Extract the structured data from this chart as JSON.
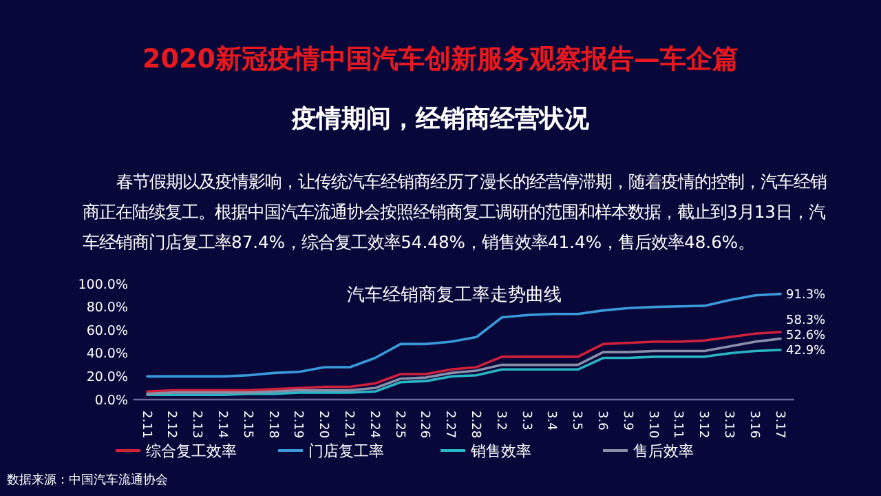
{
  "chart_data": {
    "type": "line",
    "title": "2020新冠疫情中国汽车创新服务观察报告—车企篇",
    "subtitle": "疫情期间，经销商经营状况",
    "annotations": [
      "春节假期以及疫情影响，让传统汽车经销商经历了漫长的经营停滞期，随着疫情的控制，汽车经销商正在陆续复工。根据中国汽车流通协会按照经销商复工调研的范围和样本数据，截止到3月13日，汽车经销商门店复工率87.4%，综合复工效率54.48%，销售效率41.4%，售后效率48.6%。",
      "汽车经销商复工率走势曲线",
      "数据来源：中国汽车流通协会"
    ],
    "categories": [
      "2.11",
      "2.12",
      "2.13",
      "2.14",
      "2.15",
      "2.18",
      "2.19",
      "2.20",
      "2.21",
      "2.24",
      "2.25",
      "2.26",
      "2.27",
      "2.28",
      "3.2",
      "3.3",
      "3.4",
      "3.5",
      "3.6",
      "3.9",
      "3.10",
      "3.11",
      "3.12",
      "3.13",
      "3.16",
      "3.17"
    ],
    "ylim": [
      0,
      100
    ],
    "yticks": [
      {
        "value": 0,
        "label": "0.0%"
      },
      {
        "value": 20,
        "label": "20.0%"
      },
      {
        "value": 40,
        "label": "40.0%"
      },
      {
        "value": 60,
        "label": "60.0%"
      },
      {
        "value": 80,
        "label": "80.0%"
      },
      {
        "value": 100,
        "label": "100.0%"
      }
    ],
    "grid": false,
    "legend": "bottom",
    "marker": "none",
    "line_style": "solid",
    "series": [
      {
        "name": "综合复工效率",
        "color": "#d0203a",
        "values": [
          7,
          8,
          8,
          8,
          8,
          9,
          10,
          11,
          11,
          14,
          22,
          22,
          26,
          28,
          37,
          37,
          37,
          37,
          48,
          49,
          50,
          50,
          51,
          54,
          57,
          58.3
        ],
        "value_labels": [
          null,
          null,
          null,
          null,
          null,
          null,
          null,
          null,
          null,
          null,
          null,
          null,
          null,
          null,
          null,
          null,
          null,
          null,
          null,
          null,
          null,
          null,
          null,
          null,
          null,
          "58.3%"
        ]
      },
      {
        "name": "门店复工率",
        "color": "#3a9ad9",
        "values": [
          20,
          20,
          20,
          20,
          21,
          23,
          24,
          28,
          28,
          36,
          48,
          48,
          50,
          54,
          71,
          73,
          74,
          74,
          77,
          79,
          80,
          80.5,
          81,
          86,
          90,
          91.3
        ],
        "value_labels": [
          null,
          null,
          null,
          null,
          null,
          null,
          null,
          null,
          null,
          null,
          null,
          null,
          null,
          null,
          null,
          null,
          null,
          null,
          null,
          null,
          null,
          null,
          null,
          null,
          null,
          "91.3%"
        ]
      },
      {
        "name": "销售效率",
        "color": "#2ab5c5",
        "values": [
          4,
          4,
          4,
          4,
          5,
          5,
          6,
          6,
          6,
          7,
          15,
          16,
          20,
          21,
          26,
          26,
          26,
          26,
          36,
          36,
          37,
          37,
          37,
          40,
          42,
          42.9
        ],
        "value_labels": [
          null,
          null,
          null,
          null,
          null,
          null,
          null,
          null,
          null,
          null,
          null,
          null,
          null,
          null,
          null,
          null,
          null,
          null,
          null,
          null,
          null,
          null,
          null,
          null,
          null,
          "42.9%"
        ]
      },
      {
        "name": "售后效率",
        "color": "#8a8fa8",
        "values": [
          5,
          6,
          6,
          6,
          6,
          7,
          8,
          8,
          8,
          10,
          18,
          19,
          23,
          25,
          30,
          30,
          30,
          30,
          41,
          41,
          42,
          42,
          42,
          46,
          50,
          52.6
        ],
        "value_labels": [
          null,
          null,
          null,
          null,
          null,
          null,
          null,
          null,
          null,
          null,
          null,
          null,
          null,
          null,
          null,
          null,
          null,
          null,
          null,
          null,
          null,
          null,
          null,
          null,
          null,
          "52.6%"
        ]
      }
    ]
  }
}
